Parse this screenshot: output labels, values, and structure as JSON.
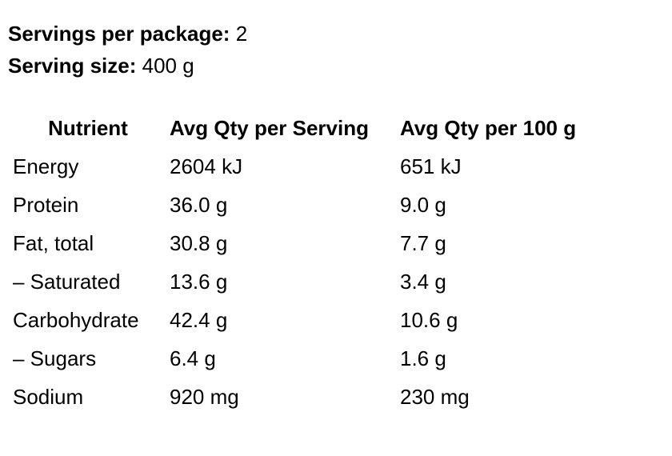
{
  "summary": {
    "servings_label": "Servings per package:",
    "servings_value": "2",
    "size_label": "Serving size:",
    "size_value": "400 g"
  },
  "table": {
    "header": [
      "Nutrient",
      "Avg Qty per Serving",
      "Avg Qty per 100 g"
    ],
    "rows": [
      [
        "Energy",
        "2604 kJ",
        "651 kJ"
      ],
      [
        "Protein",
        "36.0 g",
        "9.0 g"
      ],
      [
        "Fat, total",
        "30.8 g",
        "7.7 g"
      ],
      [
        "– Saturated",
        "13.6 g",
        "3.4 g"
      ],
      [
        "Carbohydrate",
        "42.4 g",
        "10.6 g"
      ],
      [
        "– Sugars",
        "6.4 g",
        "1.6 g"
      ],
      [
        "Sodium",
        "920 mg",
        "230 mg"
      ]
    ]
  }
}
